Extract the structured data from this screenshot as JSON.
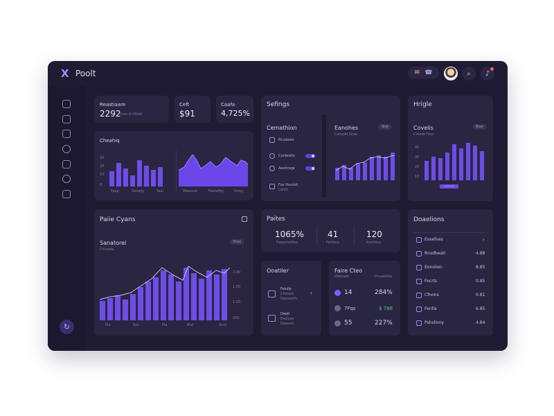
{
  "app": {
    "title": "Poolt",
    "logo_glyph": "X"
  },
  "topbar": {
    "mail_icon": "mail-icon",
    "bell_icon": "bell-icon",
    "search_glyph": "⌕",
    "bell_glyph": "♪"
  },
  "sidebar": {
    "icons": [
      "file-icon",
      "doc-icon",
      "chart-icon",
      "globe-icon",
      "box-icon",
      "clock-icon",
      "check-icon"
    ],
    "bottom_glyph": "↻"
  },
  "stats": [
    {
      "label": "Reastiaare",
      "value": "2292",
      "sub": "tsvs tt Dtstd"
    },
    {
      "label": "Ceft",
      "value": "$91"
    },
    {
      "label": "Caafa",
      "value": "4,725%"
    }
  ],
  "chart_overview": {
    "title": "Cheahiq",
    "y_ticks": [
      "2X",
      "2X",
      "1X",
      "0"
    ],
    "x_left": [
      "Faap",
      "Senwfy",
      "Taal"
    ],
    "x_right": [
      "Weeosst",
      "Fastwfby",
      "Dowy"
    ]
  },
  "settings": {
    "title": "Sefings",
    "panel_title": "Cemathion",
    "items": [
      {
        "icon": "share-icon",
        "label": "Rcsdaooi"
      },
      {
        "icon": "phone-icon",
        "label": "Conbrotis"
      },
      {
        "icon": "settings-icon",
        "label": "Aeohroge"
      },
      {
        "icon": "image-icon",
        "label": "Fov Hunloit"
      }
    ],
    "item4_sub": "Lafiot",
    "mini_chart": {
      "title": "Eanohes",
      "sub": "Caoadd Stow",
      "badge": "Stat"
    }
  },
  "insight": {
    "title": "Hrigle",
    "sub_title": "Covelis",
    "sub": "Coredt Ffaa",
    "badge": "Bsar",
    "y_ticks": [
      "40",
      "30",
      "20",
      "10"
    ],
    "legend": "———"
  },
  "perf": {
    "title": "Paiie Cyans",
    "sub_title": "Sanatorel",
    "sub": "Chrasde",
    "badge": "Shes",
    "y_ticks": [
      "2,00",
      "1,00",
      "1.00",
      "000"
    ],
    "x_ticks": [
      "Pla",
      "Sos",
      "Pla",
      "Blat",
      "Sore"
    ]
  },
  "pulse": {
    "title": "Paites",
    "values": [
      {
        "value": "1065%",
        "label": "Pweantellies"
      },
      {
        "value": "41",
        "label": "Ferbera"
      },
      {
        "value": "120",
        "label": "Rsoiiiess"
      }
    ]
  },
  "donations": {
    "title": "Doaelions",
    "items": [
      {
        "label": "Eosefves",
        "value": "›"
      },
      {
        "label": "Rnsdbeatl",
        "value": "4.88"
      },
      {
        "label": "Eonolien",
        "value": "8.85"
      },
      {
        "label": "Focrts",
        "value": "0.85"
      },
      {
        "label": "Cfnons",
        "value": "0.81"
      },
      {
        "label": "Fenlla",
        "value": "6.85"
      },
      {
        "label": "Pshsliony",
        "value": "4.84"
      }
    ]
  },
  "contact": {
    "title": "Ooatiler",
    "items": [
      {
        "title": "Feiuily",
        "l2": "Cloeare",
        "l3": "Desaaeth"
      },
      {
        "title": "Deoit",
        "l2": "Eoolsae",
        "l3": "Deaeeo"
      }
    ]
  },
  "price": {
    "title": "Faire Cteo",
    "sub_left": "Daessee",
    "sub_right": "Pnsaatiles",
    "rows": [
      {
        "left": "14",
        "right": "284%",
        "color": "#7b5cff"
      },
      {
        "left": "7Fqs",
        "right": "$ 788",
        "color": "#6e6888"
      },
      {
        "left": "55",
        "right": "227%",
        "color": "#6e6888"
      }
    ]
  },
  "colors": {
    "accent": "#6e4ce6",
    "positive": "#3fd27c",
    "card": "#2a2641"
  }
}
